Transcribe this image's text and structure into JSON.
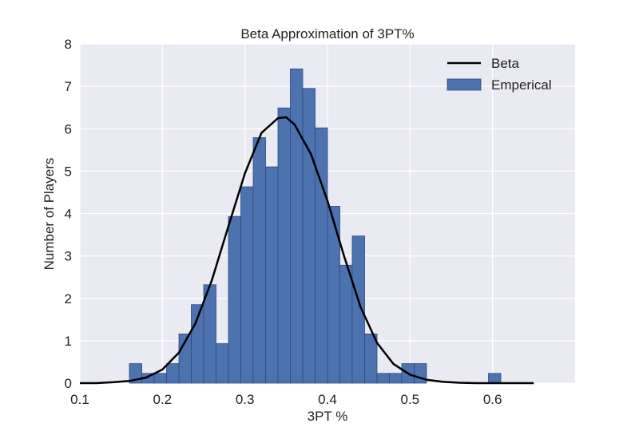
{
  "chart_data": {
    "type": "bar",
    "title": "Beta Approximation of 3PT%",
    "xlabel": "3PT %",
    "ylabel": "Number of Players",
    "xlim": [
      0.1,
      0.7
    ],
    "ylim": [
      0,
      8
    ],
    "xticks": [
      "0.1",
      "0.2",
      "0.3",
      "0.4",
      "0.5",
      "0.6"
    ],
    "yticks": [
      "0",
      "1",
      "2",
      "3",
      "4",
      "5",
      "6",
      "7",
      "8"
    ],
    "grid": true,
    "legend": {
      "placement": "top-right",
      "entries": [
        "Beta",
        "Emperical"
      ]
    },
    "colors": {
      "bars": "#4c72b0",
      "line": "#000000",
      "background": "#eaeaf2",
      "grid": "#ffffff"
    },
    "histogram": {
      "name": "Emperical",
      "bin_width": 0.015,
      "bins": [
        {
          "start": 0.16,
          "value": 0.46
        },
        {
          "start": 0.175,
          "value": 0.23
        },
        {
          "start": 0.19,
          "value": 0.23
        },
        {
          "start": 0.205,
          "value": 0.46
        },
        {
          "start": 0.22,
          "value": 1.16
        },
        {
          "start": 0.235,
          "value": 1.85
        },
        {
          "start": 0.25,
          "value": 2.32
        },
        {
          "start": 0.265,
          "value": 0.93
        },
        {
          "start": 0.28,
          "value": 3.93
        },
        {
          "start": 0.295,
          "value": 4.63
        },
        {
          "start": 0.31,
          "value": 5.79
        },
        {
          "start": 0.325,
          "value": 5.1
        },
        {
          "start": 0.34,
          "value": 6.49
        },
        {
          "start": 0.355,
          "value": 7.41
        },
        {
          "start": 0.37,
          "value": 6.95
        },
        {
          "start": 0.385,
          "value": 6.02
        },
        {
          "start": 0.4,
          "value": 4.17
        },
        {
          "start": 0.415,
          "value": 2.78
        },
        {
          "start": 0.43,
          "value": 3.47
        },
        {
          "start": 0.445,
          "value": 1.16
        },
        {
          "start": 0.46,
          "value": 0.23
        },
        {
          "start": 0.475,
          "value": 0.23
        },
        {
          "start": 0.49,
          "value": 0.46
        },
        {
          "start": 0.505,
          "value": 0.46
        },
        {
          "start": 0.595,
          "value": 0.23
        }
      ]
    },
    "line": {
      "name": "Beta",
      "x": [
        0.1,
        0.12,
        0.14,
        0.16,
        0.18,
        0.2,
        0.22,
        0.24,
        0.26,
        0.28,
        0.3,
        0.32,
        0.34,
        0.35,
        0.36,
        0.38,
        0.4,
        0.42,
        0.44,
        0.46,
        0.48,
        0.5,
        0.52,
        0.54,
        0.56,
        0.58,
        0.6,
        0.62,
        0.65
      ],
      "y": [
        0.0,
        0.0,
        0.02,
        0.05,
        0.13,
        0.32,
        0.72,
        1.41,
        2.43,
        3.7,
        4.95,
        5.9,
        6.25,
        6.27,
        6.1,
        5.4,
        4.3,
        3.0,
        1.8,
        0.95,
        0.45,
        0.2,
        0.08,
        0.03,
        0.01,
        0.0,
        0.0,
        0.0,
        0.0
      ]
    }
  }
}
